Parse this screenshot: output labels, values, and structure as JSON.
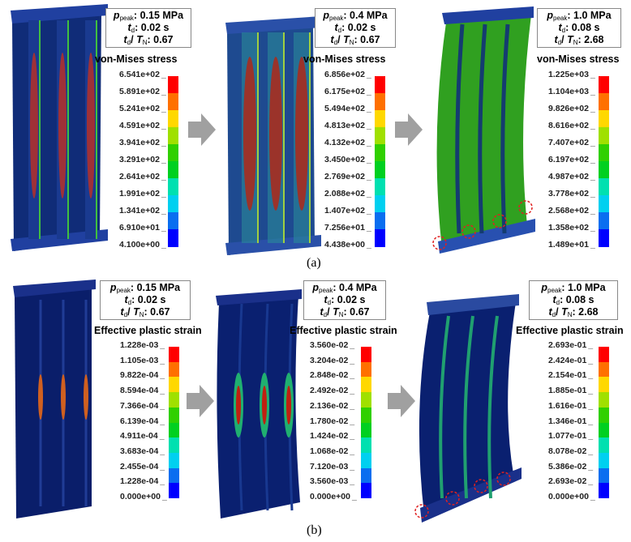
{
  "captions": {
    "a": "(a)",
    "b": "(b)"
  },
  "legend_colors": [
    "#0000ff",
    "#0a6ef0",
    "#00d0f0",
    "#00e0b0",
    "#00d020",
    "#30d000",
    "#a0e000",
    "#ffd800",
    "#ff7000",
    "#ff0000"
  ],
  "icons": {
    "arrow": "right-arrow-icon",
    "damage_marker": "red-dashed-circle-icon"
  },
  "panels": [
    {
      "row": "a",
      "p_peak": "0.15 MPa",
      "t_d": "0.02 s",
      "ratio": "0.67",
      "legend_title": "von-Mises stress",
      "legend_values": [
        "6.541e+02",
        "5.891e+02",
        "5.241e+02",
        "4.591e+02",
        "3.941e+02",
        "3.291e+02",
        "2.641e+02",
        "1.991e+02",
        "1.341e+02",
        "6.910e+01",
        "4.100e+00"
      ]
    },
    {
      "row": "a",
      "p_peak": "0.4 MPa",
      "t_d": "0.02 s",
      "ratio": "0.67",
      "legend_title": "von-Mises stress",
      "legend_values": [
        "6.856e+02",
        "6.175e+02",
        "5.494e+02",
        "4.813e+02",
        "4.132e+02",
        "3.450e+02",
        "2.769e+02",
        "2.088e+02",
        "1.407e+02",
        "7.256e+01",
        "4.438e+00"
      ]
    },
    {
      "row": "a",
      "p_peak": "1.0 MPa",
      "t_d": "0.08 s",
      "ratio": "2.68",
      "legend_title": "von-Mises stress",
      "legend_values": [
        "1.225e+03",
        "1.104e+03",
        "9.826e+02",
        "8.616e+02",
        "7.407e+02",
        "6.197e+02",
        "4.987e+02",
        "3.778e+02",
        "2.568e+02",
        "1.358e+02",
        "1.489e+01"
      ]
    },
    {
      "row": "b",
      "p_peak": "0.15 MPa",
      "t_d": "0.02 s",
      "ratio": "0.67",
      "legend_title": "Effective plastic strain",
      "legend_values": [
        "1.228e-03",
        "1.105e-03",
        "9.822e-04",
        "8.594e-04",
        "7.366e-04",
        "6.139e-04",
        "4.911e-04",
        "3.683e-04",
        "2.455e-04",
        "1.228e-04",
        "0.000e+00"
      ]
    },
    {
      "row": "b",
      "p_peak": "0.4 MPa",
      "t_d": "0.02 s",
      "ratio": "0.67",
      "legend_title": "Effective plastic strain",
      "legend_values": [
        "3.560e-02",
        "3.204e-02",
        "2.848e-02",
        "2.492e-02",
        "2.136e-02",
        "1.780e-02",
        "1.424e-02",
        "1.068e-02",
        "7.120e-03",
        "3.560e-03",
        "0.000e+00"
      ]
    },
    {
      "row": "b",
      "p_peak": "1.0 MPa",
      "t_d": "0.08 s",
      "ratio": "2.68",
      "legend_title": "Effective plastic strain",
      "legend_values": [
        "2.693e-01",
        "2.424e-01",
        "2.154e-01",
        "1.885e-01",
        "1.616e-01",
        "1.346e-01",
        "1.077e-01",
        "8.078e-02",
        "5.386e-02",
        "2.693e-02",
        "0.000e+00"
      ]
    }
  ],
  "labels": {
    "p": "p",
    "peak": "peak",
    "t": "t",
    "d": "d",
    "T": "T",
    "N": "N"
  }
}
